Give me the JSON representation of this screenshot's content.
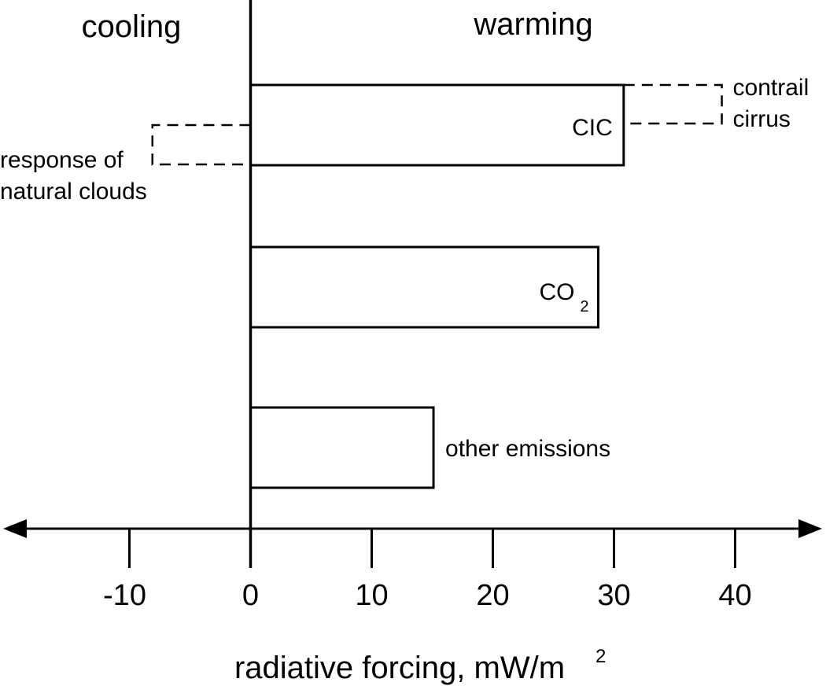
{
  "chart_data": {
    "type": "bar",
    "orientation": "horizontal",
    "region_labels": {
      "left": "cooling",
      "right": "warming"
    },
    "xlabel": "radiative forcing, mW/m",
    "xlabel_superscript": "2",
    "xlim": [
      -20,
      46
    ],
    "xticks": [
      -10,
      0,
      10,
      20,
      30,
      40
    ],
    "xtick_labels": [
      "-10",
      "0",
      "10",
      "20",
      "30",
      "40"
    ],
    "bars": [
      {
        "label": "CIC",
        "label_subscript": "",
        "value": 30.8
      },
      {
        "label": "CO",
        "label_subscript": "2",
        "value": 28.7
      },
      {
        "label": "",
        "label_subscript": "",
        "value": 15.1
      }
    ],
    "components": [
      {
        "lines": [
          "contrail",
          "cirrus"
        ],
        "range": [
          30.8,
          38.9
        ],
        "style": "dashed",
        "attached_to": "CIC"
      },
      {
        "lines": [
          "response of",
          "natural clouds"
        ],
        "range": [
          -8.1,
          0
        ],
        "style": "dashed",
        "attached_to": "CIC"
      }
    ],
    "annotations": [
      {
        "text": "other emissions",
        "attached_to_bar": 2
      }
    ],
    "colors": {
      "line": "#000000",
      "fill": "#ffffff"
    }
  }
}
